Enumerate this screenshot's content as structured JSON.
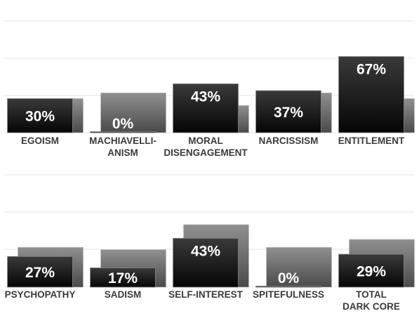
{
  "chart_data": [
    {
      "type": "bar",
      "categories": [
        [
          "EGOISM"
        ],
        [
          "MACHIAVELLI-",
          "ANISM"
        ],
        [
          "MORAL",
          "DISENGAGEMENT"
        ],
        [
          "NARCISSISM"
        ],
        [
          "ENTITLEMENT"
        ]
      ],
      "series": [
        {
          "values": [
            30,
            0,
            43,
            37,
            67
          ],
          "color": "#111111"
        },
        {
          "values": [
            30,
            35,
            24,
            35,
            30
          ],
          "color": "#777777"
        }
      ],
      "data_labels": [
        "30%",
        "0%",
        "43%",
        "37%",
        "67%"
      ],
      "grid": true,
      "legend": "none"
    },
    {
      "type": "bar",
      "categories": [
        [
          "PSYCHOPATHY"
        ],
        [
          "SADISM"
        ],
        [
          "SELF-INTEREST"
        ],
        [
          "SPITEFULNESS"
        ],
        [
          "TOTAL",
          "DARK CORE"
        ]
      ],
      "series": [
        {
          "values": [
            27,
            17,
            43,
            0,
            29
          ],
          "color": "#111111"
        },
        {
          "values": [
            35,
            33,
            55,
            35,
            42
          ],
          "color": "#777777"
        }
      ],
      "data_labels": [
        "27%",
        "17%",
        "43%",
        "0%",
        "29%"
      ],
      "grid": true,
      "legend": "none"
    }
  ],
  "colors": {
    "front_top": "#3a3a3a",
    "front_bottom": "#050505",
    "back_top": "#909090",
    "back_bottom": "#4a4a4a",
    "grid": "#e6e6e6",
    "label": "#3a3a3a",
    "value_text": "#ffffff"
  }
}
